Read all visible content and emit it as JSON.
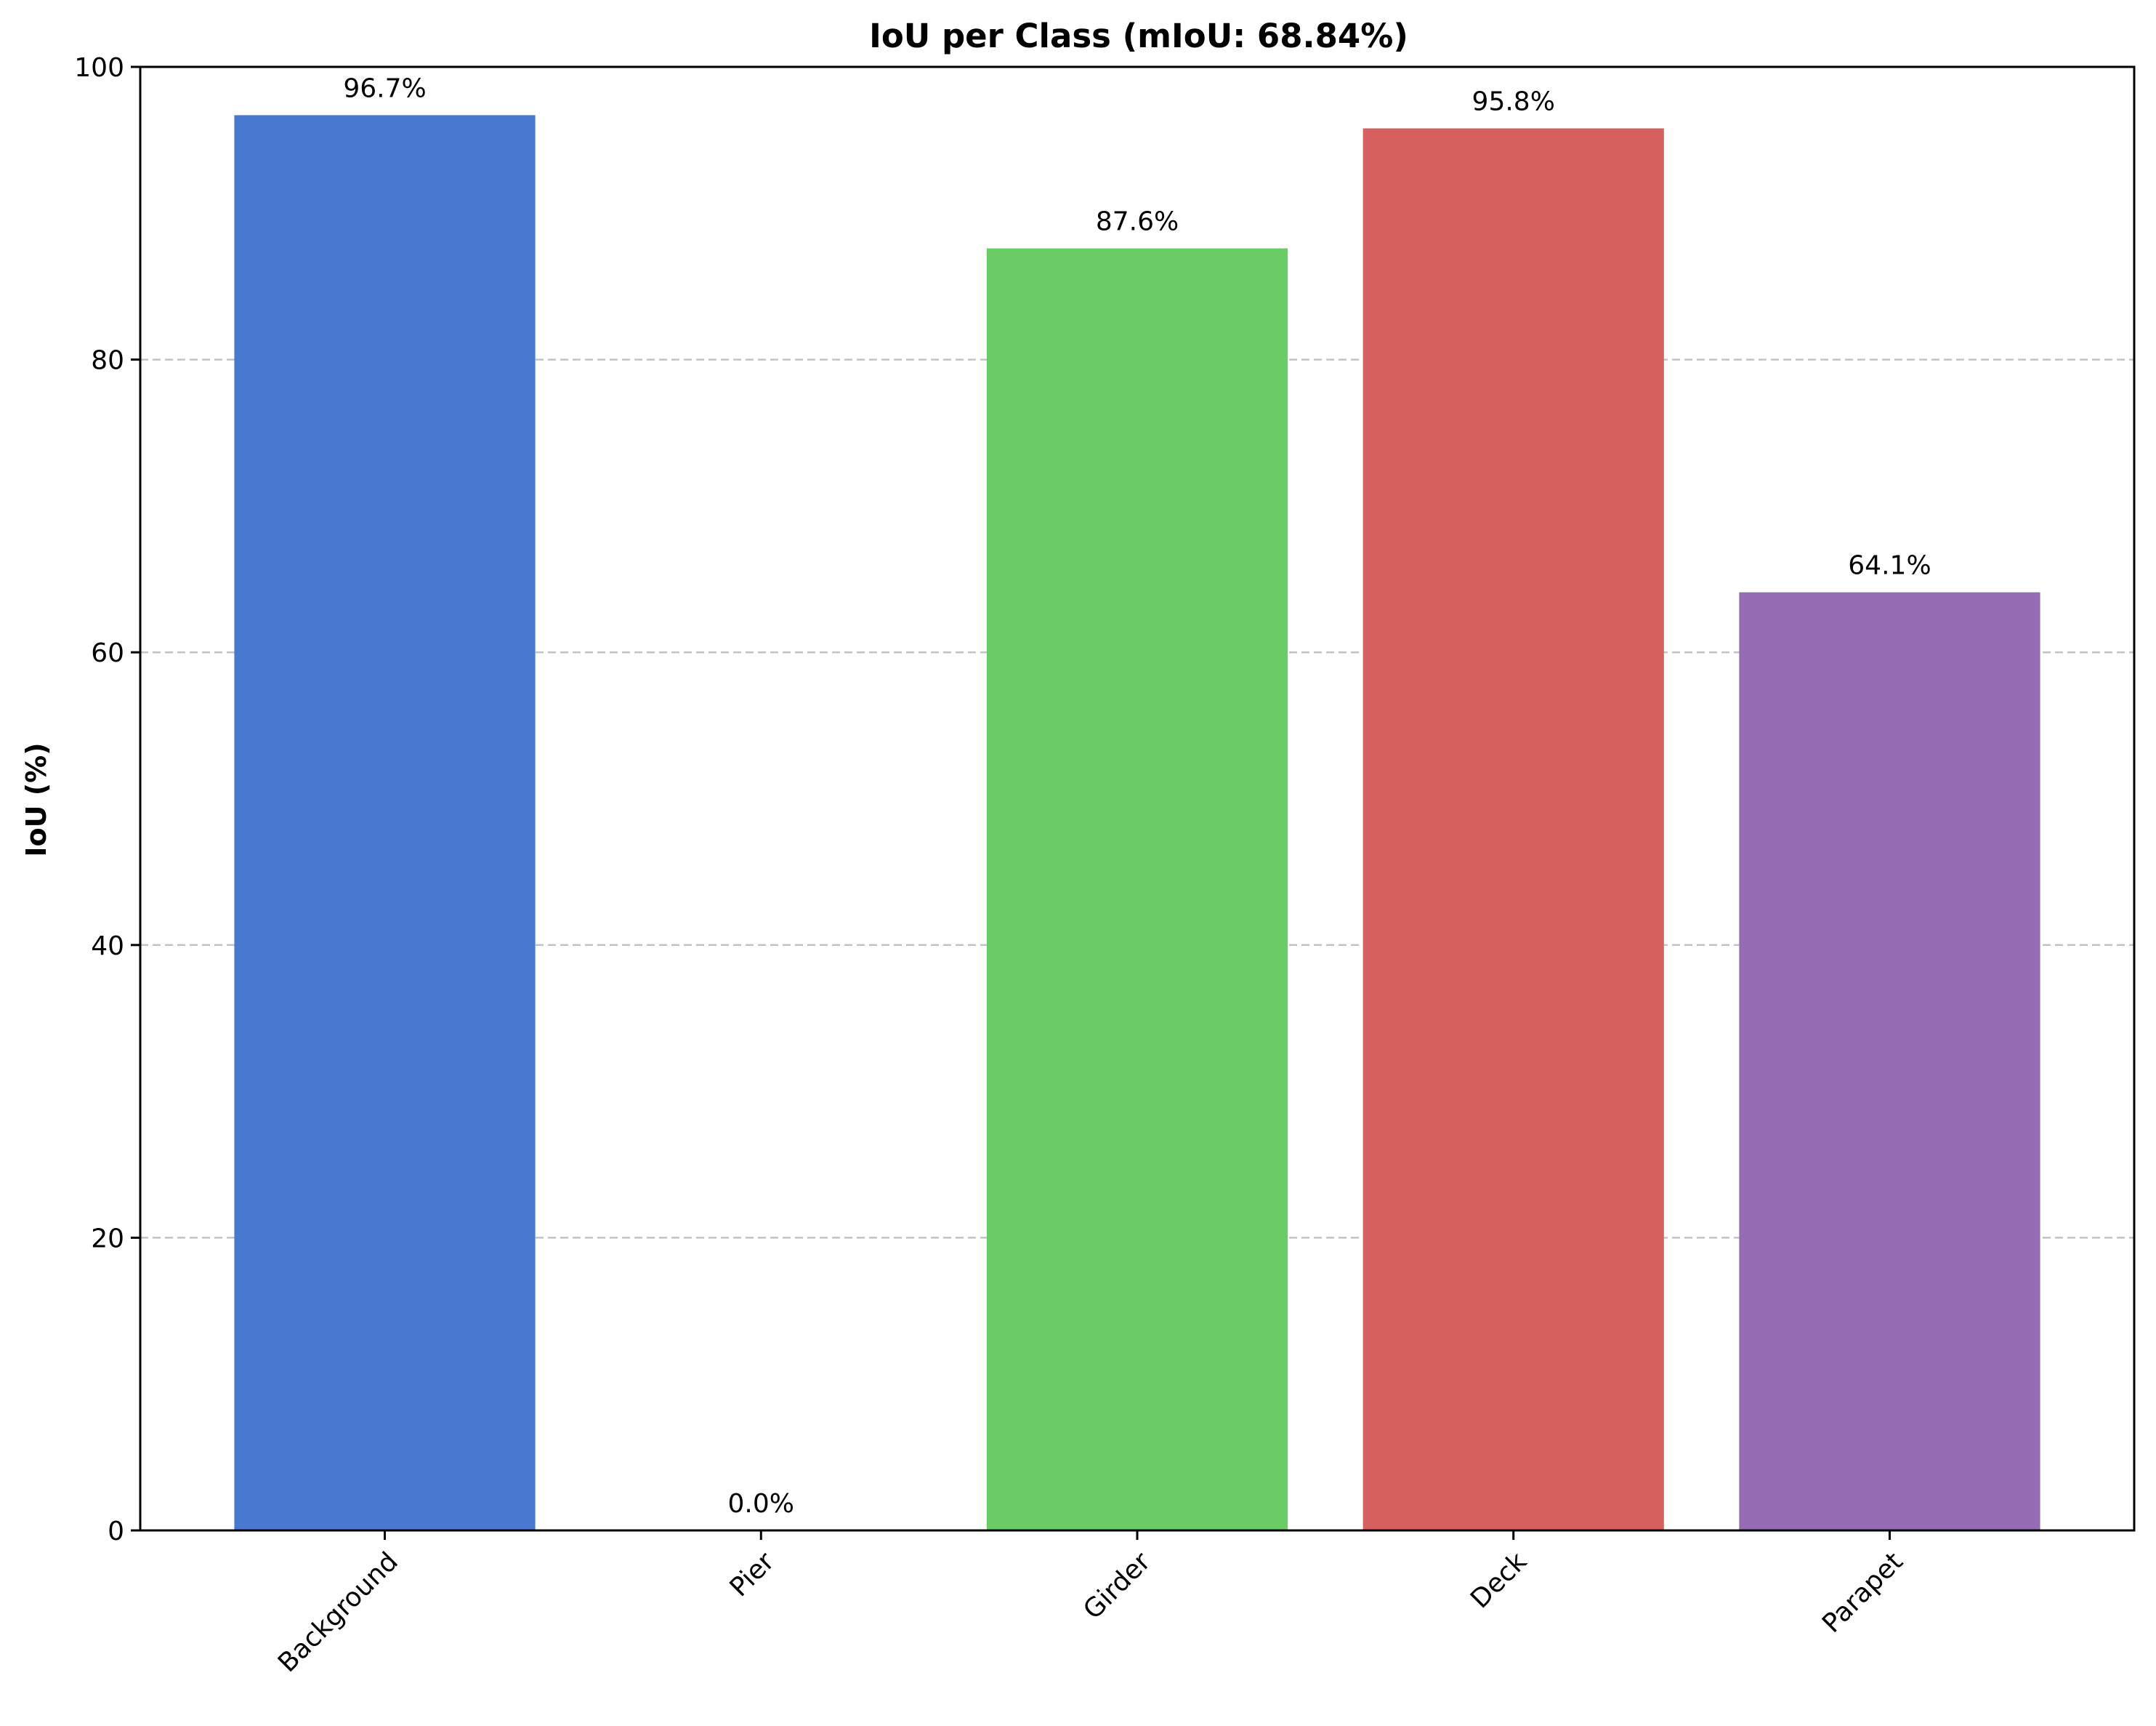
{
  "chart_data": {
    "type": "bar",
    "title": "IoU per Class (mIoU: 68.84%)",
    "xlabel": "",
    "ylabel": "IoU (%)",
    "categories": [
      "Background",
      "Pier",
      "Girder",
      "Deck",
      "Parapet"
    ],
    "values": [
      96.7,
      0.0,
      87.6,
      95.8,
      64.1
    ],
    "data_labels": [
      "96.7%",
      "0.0%",
      "87.6%",
      "95.8%",
      "64.1%"
    ],
    "colors": [
      "#4878cf",
      "#6acc65",
      "#6acc65",
      "#d65f5f",
      "#956cb4"
    ],
    "bar_colors": [
      "#4878cf",
      "#4878cf",
      "#6acc65",
      "#d65f5f",
      "#956cb4"
    ],
    "ylim": [
      0,
      100
    ],
    "yticks": [
      0,
      20,
      40,
      60,
      80,
      100
    ],
    "ytick_labels": [
      "0",
      "20",
      "40",
      "60",
      "80",
      "100"
    ],
    "grid": "y-dashed",
    "xtick_rotation": 45,
    "legend": "none"
  }
}
